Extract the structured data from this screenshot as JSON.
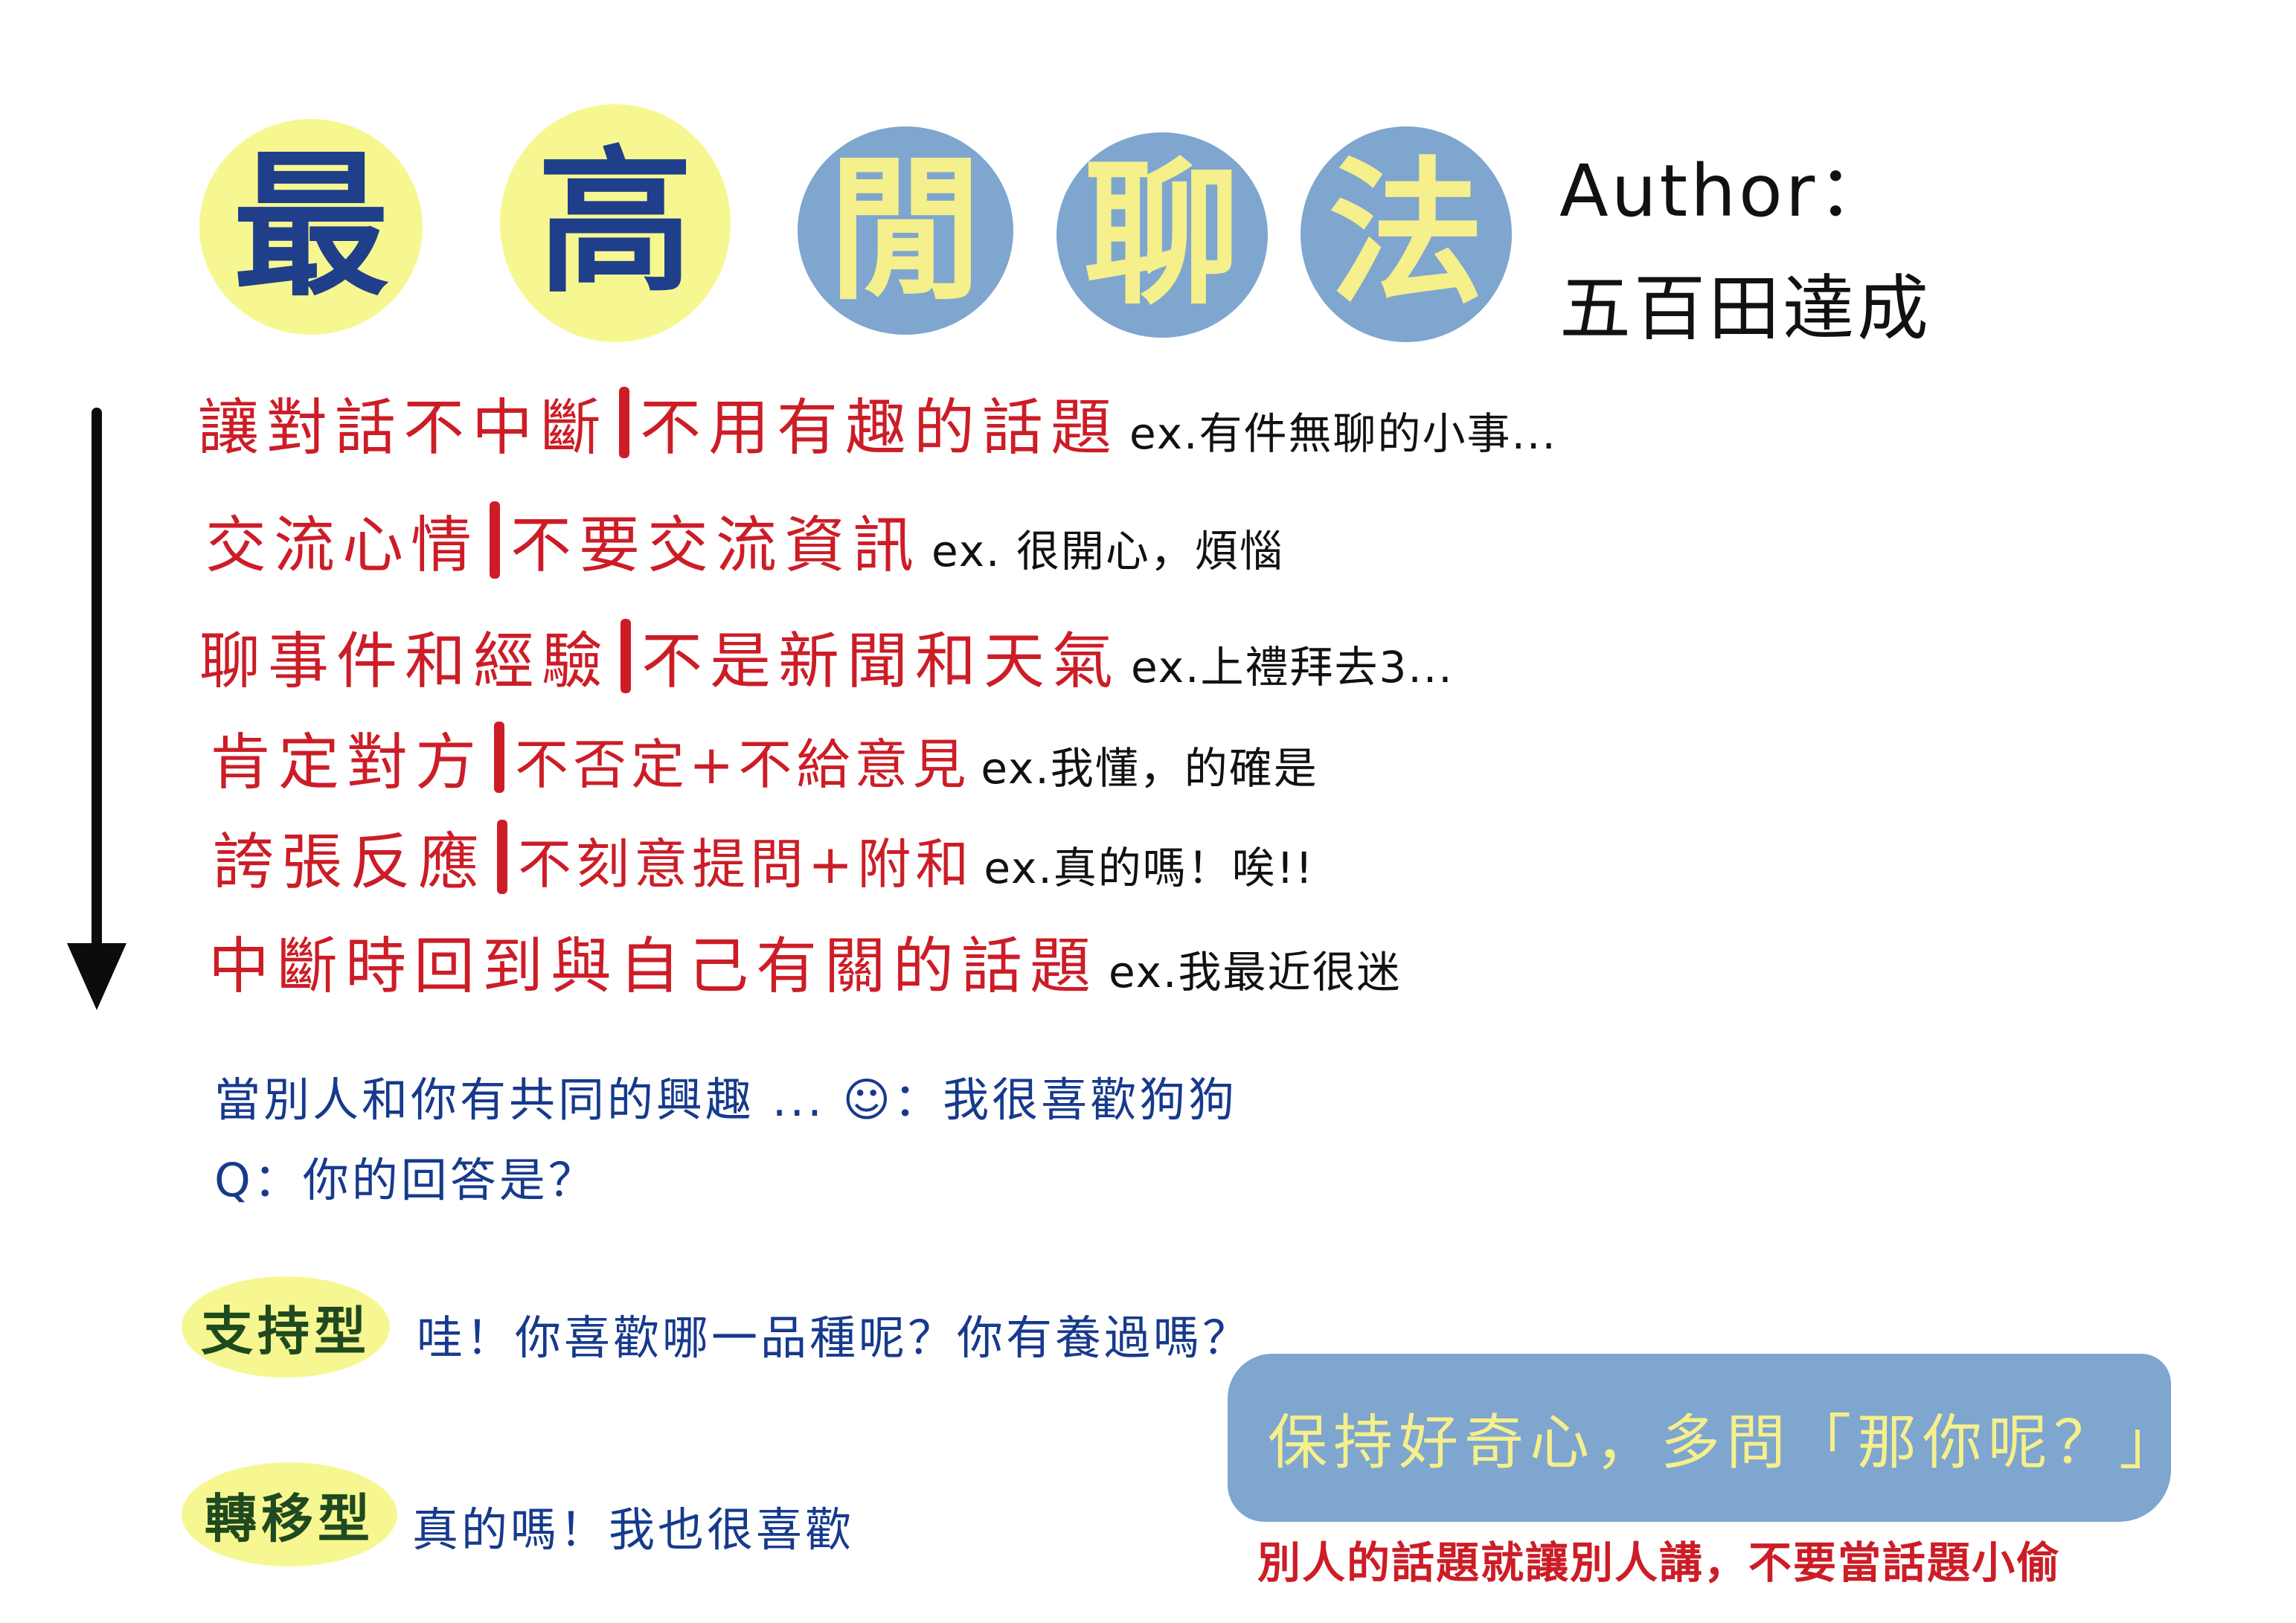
{
  "title": {
    "chars": [
      "最",
      "高",
      "閒",
      "聊",
      "法"
    ]
  },
  "author": {
    "label": "Author：",
    "name": "五百田達成"
  },
  "rules": [
    {
      "main": "讓對話不中斷",
      "sub": "不用有趣的話題",
      "ex": "ex.有件無聊的小事..."
    },
    {
      "main": "交流心情",
      "sub": "不要交流資訊",
      "ex": "ex. 很開心，煩惱"
    },
    {
      "main": "聊事件和經驗",
      "sub": "不是新聞和天氣",
      "ex": "ex.上禮拜去3..."
    },
    {
      "main": "肯定對方",
      "sub": "不否定+不給意見",
      "ex": "ex.我懂，的確是"
    },
    {
      "main": "誇張反應",
      "sub": "不刻意提問+附和",
      "ex": "ex.真的嗎！唉!!"
    },
    {
      "main": "中斷時回到與自己有關的話題",
      "sub": "",
      "ex": "ex.我最近很迷"
    }
  ],
  "question": {
    "scenario": "當別人和你有共同的興趣 ... ☺︎：我很喜歡狗狗",
    "prompt": "Q：你的回答是？"
  },
  "types": [
    {
      "tag": "支持型",
      "reply": "哇！你喜歡哪一品種呢？你有養過嗎？"
    },
    {
      "tag": "轉移型",
      "reply": "真的嗎！我也很喜歡"
    }
  ],
  "banner": {
    "text": "保持好奇心，多問「那你呢？」",
    "note": "別人的話題就讓別人講，不要當話題小偷"
  },
  "colors": {
    "yellow": "#f7f792",
    "blue": "#7ea6cf",
    "red": "#cc1d27",
    "navy": "#163a8c"
  }
}
